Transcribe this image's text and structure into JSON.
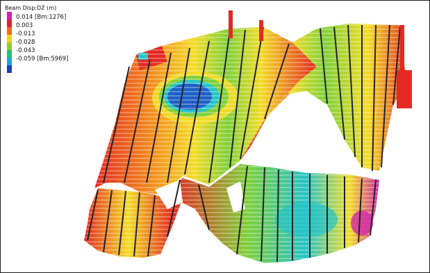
{
  "legend": {
    "title": "Beam Disp:DZ (m)",
    "entries": [
      {
        "label": "0.014 [Bm:1276]"
      },
      {
        "label": "0.003"
      },
      {
        "label": "-0.013"
      },
      {
        "label": "-0.028"
      },
      {
        "label": "-0.043"
      },
      {
        "label": "-0.059 [Bm:5969]"
      }
    ],
    "colors": [
      "#d01fb4",
      "#e0203a",
      "#f26a1a",
      "#f3d21f",
      "#8fcf2e",
      "#25c07a",
      "#1ea6d8",
      "#1a3fc0"
    ]
  },
  "colors": {
    "red": "#e32a22",
    "orange": "#f28a1e",
    "yellow": "#f3dc27",
    "green": "#7fd03a",
    "cyan": "#27c3c8",
    "blue": "#1e5fc8",
    "magenta": "#cf2aa8",
    "column": "#222222"
  }
}
